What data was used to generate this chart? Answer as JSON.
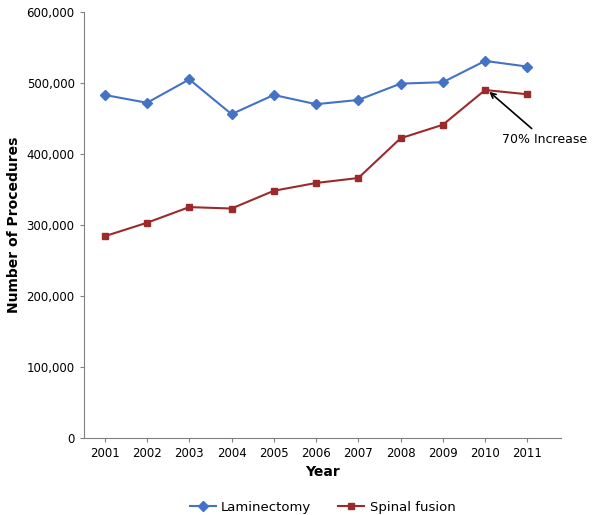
{
  "years": [
    2001,
    2002,
    2003,
    2004,
    2005,
    2006,
    2007,
    2008,
    2009,
    2010,
    2011
  ],
  "laminectomy": [
    483000,
    472000,
    505000,
    456000,
    483000,
    470000,
    476000,
    499000,
    501000,
    531000,
    523000
  ],
  "spinal_fusion": [
    284000,
    303000,
    325000,
    323000,
    348000,
    359000,
    366000,
    422000,
    441000,
    490000,
    484000
  ],
  "laminectomy_color": "#4472C4",
  "spinal_fusion_color": "#9B2B2B",
  "xlabel": "Year",
  "ylabel": "Number of Procedures",
  "ylim": [
    0,
    600000
  ],
  "yticks": [
    0,
    100000,
    200000,
    300000,
    400000,
    500000,
    600000
  ],
  "annotation_text": "70% Increase",
  "legend_laminectomy": "Laminectomy",
  "legend_spinal_fusion": "Spinal fusion",
  "background_color": "#FFFFFF"
}
